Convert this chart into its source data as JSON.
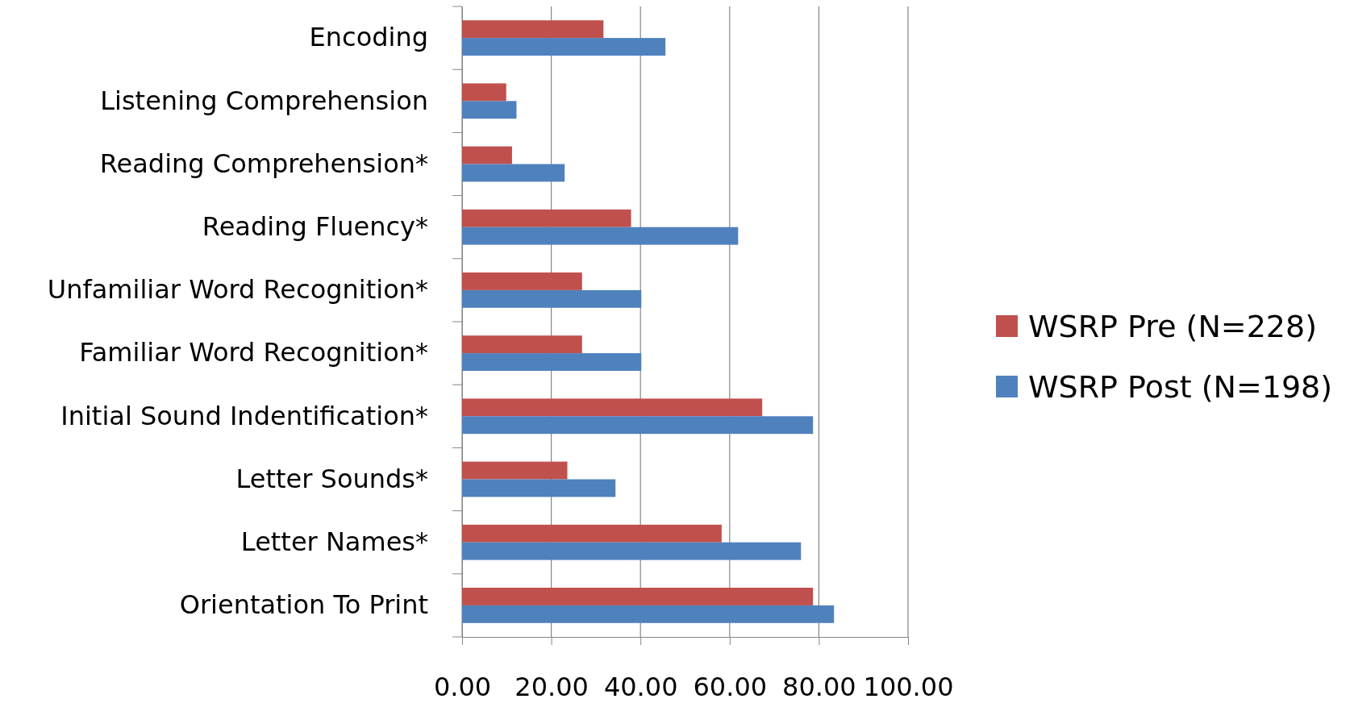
{
  "chart_data": {
    "type": "bar",
    "orientation": "horizontal",
    "categories": [
      "Encoding",
      "Listening Comprehension",
      "Reading Comprehension*",
      "Reading Fluency*",
      "Unfamiliar Word Recognition*",
      "Familiar Word Recognition*",
      "Initial Sound Indentification*",
      "Letter Sounds*",
      "Letter Names*",
      "Orientation To Print"
    ],
    "series": [
      {
        "name": "WSRP Pre (N=228)",
        "color": "#c0504d",
        "values": [
          31.7,
          9.9,
          11.2,
          37.9,
          26.9,
          26.9,
          67.3,
          23.6,
          58.2,
          78.7
        ]
      },
      {
        "name": "WSRP Post (N=198)",
        "color": "#4f81bd",
        "values": [
          45.6,
          12.2,
          23.0,
          61.9,
          40.2,
          40.2,
          78.7,
          34.4,
          76.0,
          83.4
        ]
      }
    ],
    "xlim": [
      0,
      100
    ],
    "xticks": [
      {
        "value": 0,
        "label": "0.00"
      },
      {
        "value": 20,
        "label": "20.00"
      },
      {
        "value": 40,
        "label": "40.00"
      },
      {
        "value": 60,
        "label": "60.00"
      },
      {
        "value": 80,
        "label": "80.00"
      },
      {
        "value": 100,
        "label": "100.00"
      }
    ],
    "grid": "x",
    "legend": "right"
  }
}
